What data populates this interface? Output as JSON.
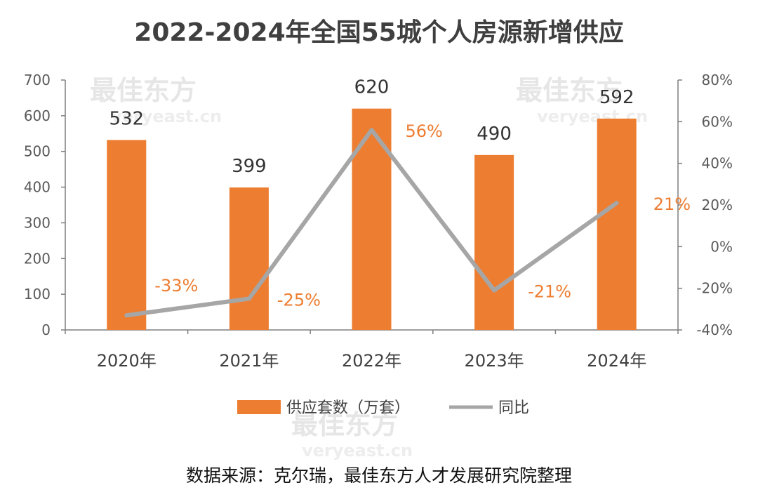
{
  "title": "2022-2024年全国55城个人房源新增供应",
  "source_note": "数据来源：克尔瑞，最佳东方人才发展研究院整理",
  "watermark": {
    "brand": "最佳东方",
    "domain": "veryeast.cn"
  },
  "colors": {
    "bar": "#ED7D31",
    "line": "#A6A6A6",
    "pct_label": "#ED7D31",
    "axis": "#7f7f7f"
  },
  "chart_data": {
    "type": "bar",
    "categories": [
      "2020年",
      "2021年",
      "2022年",
      "2023年",
      "2024年"
    ],
    "series": [
      {
        "name": "供应套数（万套）",
        "type": "bar",
        "axis": "left",
        "values": [
          532,
          399,
          620,
          490,
          592
        ],
        "labels": [
          "532",
          "399",
          "620",
          "490",
          "592"
        ]
      },
      {
        "name": "同比",
        "type": "line",
        "axis": "right",
        "values": [
          -33,
          -25,
          56,
          -21,
          21
        ],
        "labels": [
          "-33%",
          "-25%",
          "56%",
          "-21%",
          "21%"
        ]
      }
    ],
    "y_left": {
      "min": 0,
      "max": 700,
      "ticks": [
        "0",
        "100",
        "200",
        "300",
        "400",
        "500",
        "600",
        "700"
      ]
    },
    "y_right": {
      "min": -40,
      "max": 80,
      "ticks": [
        "-40%",
        "-20%",
        "0%",
        "20%",
        "40%",
        "60%",
        "80%"
      ]
    },
    "grid": false,
    "legend_position": "bottom"
  }
}
